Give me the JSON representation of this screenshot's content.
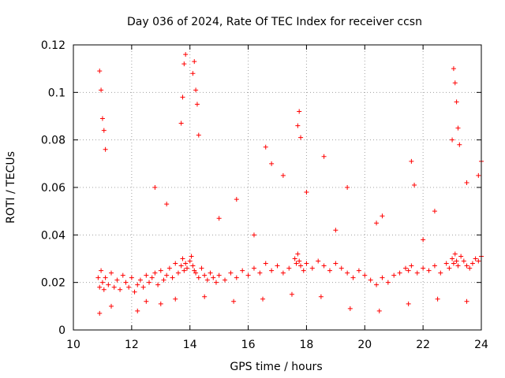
{
  "chart_data": {
    "type": "scatter",
    "title": "Day 036 of 2024, Rate Of TEC Index for receiver ccsn",
    "xlabel": "GPS time / hours",
    "ylabel": "ROTI / TECUs",
    "xlim": [
      10,
      24
    ],
    "ylim": [
      0,
      0.12
    ],
    "x_ticks": [
      10,
      12,
      14,
      16,
      18,
      20,
      22,
      24
    ],
    "x_tick_labels": [
      "10",
      "12",
      "14",
      "16",
      "18",
      "20",
      "22",
      "24"
    ],
    "y_ticks": [
      0,
      0.02,
      0.04,
      0.06,
      0.08,
      0.1,
      0.12
    ],
    "y_tick_labels": [
      "0",
      "0.02",
      "0.04",
      "0.06",
      "0.08",
      "0.1",
      "0.12"
    ],
    "grid": true,
    "marker": "+",
    "color": "#ff0000",
    "series": [
      {
        "name": "ROTI",
        "x": [
          10.85,
          10.9,
          10.95,
          11.0,
          11.05,
          11.1,
          11.2,
          11.3,
          11.4,
          11.5,
          11.6,
          11.7,
          11.8,
          11.9,
          12.0,
          12.1,
          12.2,
          12.3,
          12.4,
          12.5,
          12.6,
          12.7,
          12.8,
          12.9,
          13.0,
          13.1,
          13.2,
          13.3,
          13.4,
          13.5,
          13.6,
          13.7,
          13.75,
          13.8,
          13.85,
          13.9,
          14.0,
          14.05,
          14.1,
          14.15,
          14.2,
          14.3,
          14.4,
          14.5,
          14.6,
          14.7,
          14.8,
          14.9,
          15.0,
          15.2,
          15.4,
          15.6,
          15.8,
          16.0,
          16.2,
          16.4,
          16.6,
          16.8,
          17.0,
          17.2,
          17.4,
          17.6,
          17.65,
          17.7,
          17.75,
          17.8,
          17.9,
          18.0,
          18.2,
          18.4,
          18.6,
          18.8,
          19.0,
          19.2,
          19.4,
          19.6,
          19.8,
          20.0,
          20.2,
          20.4,
          20.6,
          20.8,
          21.0,
          21.2,
          21.4,
          21.5,
          21.6,
          21.8,
          22.0,
          22.2,
          22.4,
          22.6,
          22.8,
          22.9,
          23.0,
          23.05,
          23.1,
          23.15,
          23.2,
          23.3,
          23.4,
          23.5,
          23.6,
          23.7,
          23.8,
          23.9,
          24.0,
          10.9,
          10.95,
          11.0,
          11.05,
          11.1,
          13.7,
          13.75,
          13.8,
          13.85,
          14.1,
          14.15,
          14.2,
          14.25,
          17.7,
          17.75,
          17.8,
          23.0,
          23.05,
          23.1,
          23.15,
          23.2,
          23.25,
          14.3,
          16.6,
          16.8,
          17.2,
          18.0,
          18.6,
          19.4,
          21.6,
          21.7,
          22.4,
          23.5,
          23.9,
          24.0,
          12.8,
          13.2,
          15.0,
          15.6,
          16.2,
          19.0,
          20.4,
          20.6,
          22.0,
          10.9,
          11.3,
          12.2,
          12.5,
          13.0,
          13.5,
          14.5,
          15.5,
          16.5,
          17.5,
          18.5,
          19.5,
          20.5,
          21.5,
          22.5,
          23.5
        ],
        "y": [
          0.022,
          0.018,
          0.025,
          0.02,
          0.017,
          0.022,
          0.019,
          0.024,
          0.018,
          0.021,
          0.017,
          0.023,
          0.02,
          0.018,
          0.022,
          0.016,
          0.019,
          0.021,
          0.018,
          0.023,
          0.02,
          0.022,
          0.024,
          0.019,
          0.025,
          0.021,
          0.023,
          0.026,
          0.022,
          0.028,
          0.024,
          0.027,
          0.03,
          0.025,
          0.028,
          0.026,
          0.029,
          0.031,
          0.027,
          0.025,
          0.024,
          0.022,
          0.026,
          0.023,
          0.021,
          0.024,
          0.022,
          0.02,
          0.023,
          0.021,
          0.024,
          0.022,
          0.025,
          0.023,
          0.026,
          0.024,
          0.028,
          0.025,
          0.027,
          0.024,
          0.026,
          0.03,
          0.028,
          0.032,
          0.029,
          0.027,
          0.025,
          0.028,
          0.026,
          0.029,
          0.027,
          0.025,
          0.028,
          0.026,
          0.024,
          0.022,
          0.025,
          0.023,
          0.021,
          0.019,
          0.022,
          0.02,
          0.023,
          0.024,
          0.026,
          0.025,
          0.027,
          0.024,
          0.026,
          0.025,
          0.027,
          0.024,
          0.028,
          0.026,
          0.03,
          0.028,
          0.032,
          0.029,
          0.027,
          0.031,
          0.029,
          0.027,
          0.026,
          0.028,
          0.03,
          0.029,
          0.031,
          0.109,
          0.101,
          0.089,
          0.084,
          0.076,
          0.087,
          0.098,
          0.112,
          0.116,
          0.108,
          0.113,
          0.101,
          0.095,
          0.086,
          0.092,
          0.081,
          0.08,
          0.11,
          0.104,
          0.096,
          0.085,
          0.078,
          0.082,
          0.077,
          0.07,
          0.065,
          0.058,
          0.073,
          0.06,
          0.071,
          0.061,
          0.05,
          0.062,
          0.065,
          0.071,
          0.06,
          0.053,
          0.047,
          0.055,
          0.04,
          0.042,
          0.045,
          0.048,
          0.038,
          0.007,
          0.01,
          0.008,
          0.012,
          0.011,
          0.013,
          0.014,
          0.012,
          0.013,
          0.015,
          0.014,
          0.009,
          0.008,
          0.011,
          0.013,
          0.012
        ]
      }
    ]
  }
}
